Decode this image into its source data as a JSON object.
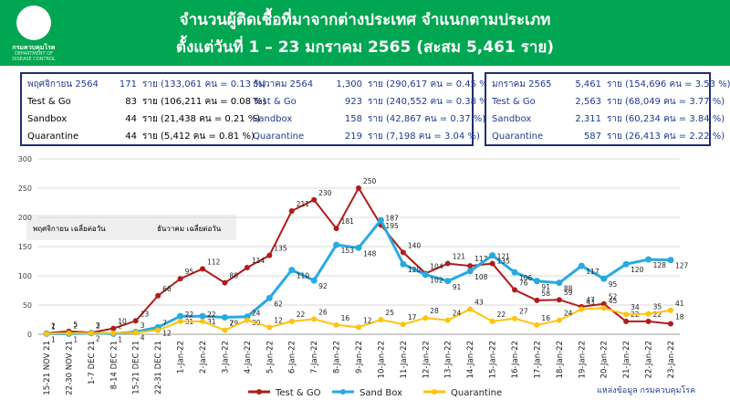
{
  "header": {
    "title_line1": "จำนวนผู้ติดเชื้อที่มาจากต่างประเทศ จำแนกตามประเภท",
    "title_line2": "ตั้งแต่วันที่  1 – 23  มกราคม  2565 (สะสม 5,461 ราย)",
    "logo_text": "กรมควบคุมโรค",
    "logo_subtext": "DEPARTMENT OF DISEASE CONTROL",
    "background_color": "#00a651"
  },
  "summary_left": {
    "nov": {
      "rows": [
        {
          "label": "พฤศจิกายน 2564",
          "count": "171",
          "detail": "ราย (133,061 คน = 0.13 %)"
        },
        {
          "label": "Test & Go",
          "count": "83",
          "detail": "ราย (106,211 คน = 0.08 %)"
        },
        {
          "label": "Sandbox",
          "count": "44",
          "detail": "ราย  (21,438 คน  = 0.21 %)"
        },
        {
          "label": "Quarantine",
          "count": "44",
          "detail": "ราย  (5,412 คน  =  0.81 %)"
        }
      ]
    },
    "dec": {
      "rows": [
        {
          "label": "ธันวาคม 2564",
          "count": "1,300",
          "detail": "ราย (290,617 คน = 0.45 %)"
        },
        {
          "label": "Test & Go",
          "count": "923",
          "detail": "ราย (240,552 คน = 0.38 %)"
        },
        {
          "label": "Sandbox",
          "count": "158",
          "detail": "ราย (42,867 คน   = 0.37 %)"
        },
        {
          "label": "Quarantine",
          "count": "219",
          "detail": "ราย (7,198 คน    = 3.04 %)"
        }
      ]
    }
  },
  "summary_right": {
    "rows": [
      {
        "label": "มกราคม 2565",
        "count": "5,461",
        "detail": "ราย (154,696 คน = 3.53 %)"
      },
      {
        "label": "Test & Go",
        "count": "2,563",
        "detail": "ราย (68,049 คน = 3.77 %)"
      },
      {
        "label": "Sandbox",
        "count": "2,311",
        "detail": "ราย (60,234 คน = 3.84 %)"
      },
      {
        "label": "Quarantine",
        "count": "587",
        "detail": "ราย (26,413 คน = 2.22 %)"
      }
    ]
  },
  "annotations": {
    "nov_avg": "พฤศจิกายน เฉลี่ยต่อวัน",
    "dec_avg": "ธันวาคม เฉลี่ยต่อวัน"
  },
  "source": "แหล่งข้อมูล กรมควบคุมโรค",
  "chart_data": {
    "type": "line",
    "categories": [
      "15-21 NOV 21",
      "22-30 NOV 21",
      "1-7 DEC 21",
      "8-14 DEC 21",
      "15-21 DEC 21",
      "22-31 DEC 21",
      "1-Jan-22",
      "2-Jan-22",
      "3-Jan-22",
      "4-Jan-22",
      "5-Jan-22",
      "6-Jan-22",
      "7-Jan-22",
      "8-Jan-22",
      "9-Jan-22",
      "10-Jan-22",
      "11-Jan-22",
      "12-Jan-22",
      "13-Jan-22",
      "14-Jan-22",
      "15-Jan-22",
      "16-Jan-22",
      "17-Jan-22",
      "18-Jan-22",
      "19-Jan-22",
      "20-Jan-22",
      "21-Jan-22",
      "22-Jan-22",
      "23-Jan-22"
    ],
    "ylim": [
      0,
      300
    ],
    "yticks": [
      0,
      50,
      100,
      150,
      200,
      250,
      300
    ],
    "grid": true,
    "legend_position": "bottom",
    "series": [
      {
        "name": "Test & GO",
        "color": "#b01c1c",
        "values": [
          2,
          5,
          3,
          10,
          23,
          66,
          95,
          112,
          88,
          114,
          135,
          211,
          230,
          181,
          250,
          187,
          140,
          104,
          121,
          117,
          121,
          76,
          58,
          59,
          47,
          52,
          22,
          22,
          18
        ]
      },
      {
        "name": "Sand Box",
        "color": "#27aae1",
        "values": [
          1,
          1,
          2,
          1,
          4,
          12,
          31,
          31,
          29,
          30,
          62,
          110,
          92,
          153,
          148,
          195,
          120,
          102,
          91,
          108,
          135,
          106,
          91,
          88,
          117,
          95,
          120,
          128,
          127
        ]
      },
      {
        "name": "Quarantine",
        "color": "#ffc20e",
        "values": [
          1,
          2,
          2,
          2,
          3,
          7,
          22,
          22,
          7,
          24,
          12,
          22,
          26,
          16,
          12,
          25,
          17,
          28,
          24,
          43,
          22,
          27,
          16,
          24,
          43,
          45,
          34,
          35,
          41
        ]
      }
    ]
  }
}
